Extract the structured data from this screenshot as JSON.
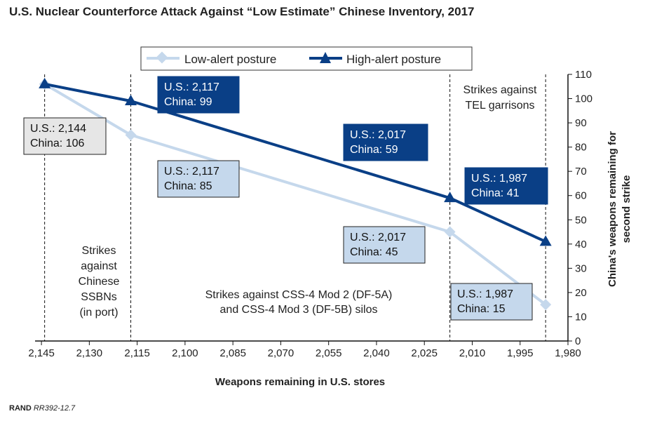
{
  "chart_data": {
    "type": "line",
    "title": "U.S. Nuclear Counterforce Attack Against “Low Estimate” Chinese Inventory, 2017",
    "xlabel": "Weapons remaining in U.S. stores",
    "ylabel_lines": [
      "China's weapons remaining for",
      "second strike"
    ],
    "xlim": [
      2147,
      1980
    ],
    "ylim": [
      0,
      110
    ],
    "x_ticks": [
      2145,
      2130,
      2115,
      2100,
      2085,
      2070,
      2055,
      2040,
      2025,
      2010,
      1995,
      1980
    ],
    "x_tick_labels": [
      "2,145",
      "2,130",
      "2,115",
      "2,100",
      "2,085",
      "2,070",
      "2,055",
      "2,040",
      "2,025",
      "2,010",
      "1,995",
      "1,980"
    ],
    "y_ticks": [
      0,
      10,
      20,
      30,
      40,
      50,
      60,
      70,
      80,
      90,
      100,
      110
    ],
    "y_tick_labels": [
      "0",
      "10",
      "20",
      "30",
      "40",
      "50",
      "60",
      "70",
      "80",
      "90",
      "100",
      "110"
    ],
    "series": [
      {
        "name": "Low-alert posture",
        "color": "#c5d8ec",
        "marker": "diamond",
        "points": [
          {
            "x": 2144,
            "y": 106,
            "label": [
              "U.S.: 2,144",
              "China: 106"
            ]
          },
          {
            "x": 2117,
            "y": 85,
            "label": [
              "U.S.: 2,117",
              "China: 85"
            ]
          },
          {
            "x": 2017,
            "y": 45,
            "label": [
              "U.S.: 2,017",
              "China: 45"
            ]
          },
          {
            "x": 1987,
            "y": 15,
            "label": [
              "U.S.: 1,987",
              "China: 15"
            ]
          }
        ]
      },
      {
        "name": "High-alert posture",
        "color": "#0a3f86",
        "marker": "triangle",
        "points": [
          {
            "x": 2144,
            "y": 106,
            "label": null
          },
          {
            "x": 2117,
            "y": 99,
            "label": [
              "U.S.: 2,117",
              "China: 99"
            ]
          },
          {
            "x": 2017,
            "y": 59,
            "label": [
              "U.S.: 2,017",
              "China: 59"
            ]
          },
          {
            "x": 1987,
            "y": 41,
            "label": [
              "U.S.: 1,987",
              "China: 41"
            ]
          }
        ]
      }
    ],
    "annotations": [
      {
        "id": "ssbn",
        "lines": [
          "Strikes",
          "against",
          "Chinese",
          "SSBNs",
          "(in port)"
        ]
      },
      {
        "id": "silos",
        "lines": [
          "Strikes against CSS-4 Mod 2 (DF-5A)",
          "and CSS-4 Mod 3 (DF-5B) silos"
        ]
      },
      {
        "id": "tel",
        "lines": [
          "Strikes against",
          "TEL garrisons"
        ]
      }
    ],
    "phase_lines_x": [
      2144,
      2117,
      2017,
      1987
    ],
    "source": "RAND RR392-12.7"
  }
}
